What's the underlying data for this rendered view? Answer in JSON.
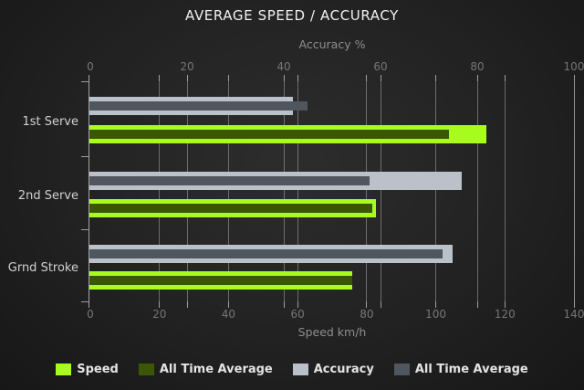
{
  "chart_data": {
    "type": "bar",
    "orientation": "horizontal",
    "title": "AVERAGE SPEED / ACCURACY",
    "categories": [
      "1st Serve",
      "2nd Serve",
      "Grnd Stroke"
    ],
    "axes": {
      "top": {
        "label": "Accuracy %",
        "min": 0,
        "max": 100,
        "ticks": [
          0,
          20,
          40,
          60,
          80,
          100
        ]
      },
      "bottom": {
        "label": "Speed km/h",
        "min": 0,
        "max": 140,
        "ticks": [
          0,
          20,
          40,
          60,
          80,
          100,
          120,
          140
        ]
      }
    },
    "series": [
      {
        "id": "speed",
        "name": "Speed",
        "axis": "bottom",
        "color": "#a7fb1d",
        "values": [
          115,
          83,
          76
        ]
      },
      {
        "id": "speed_all_time",
        "name": "All Time Average",
        "axis": "bottom",
        "color": "#3b5606",
        "values": [
          104,
          82,
          76
        ]
      },
      {
        "id": "accuracy",
        "name": "Accuracy",
        "axis": "top",
        "color": "#bac1c8",
        "values": [
          42,
          77,
          75
        ]
      },
      {
        "id": "accuracy_all_time",
        "name": "All Time Average",
        "axis": "top",
        "color": "#4f565e",
        "values": [
          45,
          58,
          73
        ]
      }
    ],
    "grid": true,
    "legend_position": "bottom"
  },
  "legend": [
    {
      "id": "speed",
      "label": "Speed",
      "color": "#a7fb1d"
    },
    {
      "id": "speed_all_time",
      "label": "All Time Average",
      "color": "#3b5606"
    },
    {
      "id": "accuracy",
      "label": "Accuracy",
      "color": "#bac1c8"
    },
    {
      "id": "accuracy_all_time",
      "label": "All Time Average",
      "color": "#4f565e"
    }
  ]
}
